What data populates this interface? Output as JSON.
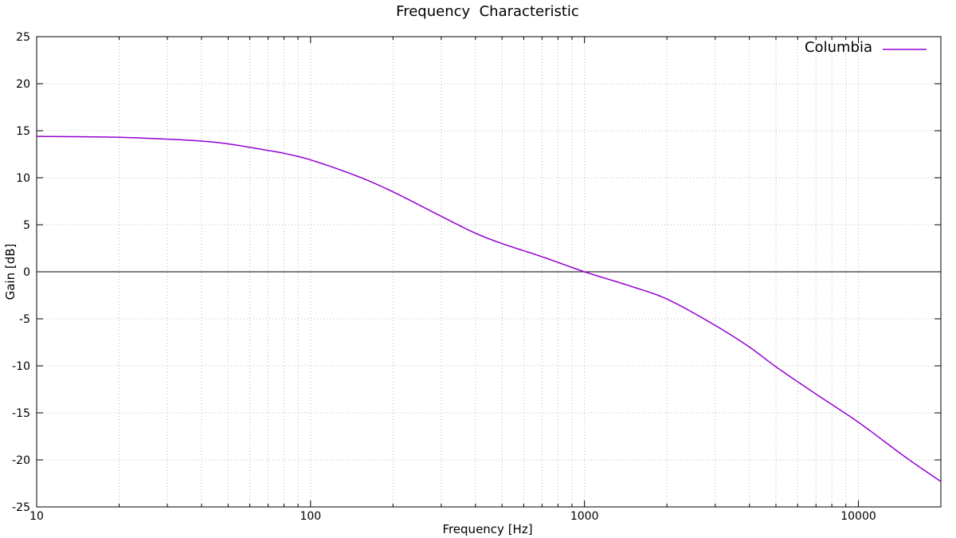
{
  "chart_data": {
    "type": "line",
    "title": "Frequency  Characteristic",
    "xlabel": "Frequency [Hz]",
    "ylabel": "Gain [dB]",
    "xscale": "log",
    "xlim": [
      10,
      20000
    ],
    "ylim": [
      -25,
      25
    ],
    "x_tick_labels": [
      "10",
      "100",
      "1000",
      "10000"
    ],
    "y_tick_labels": [
      "25",
      "20",
      "15",
      "10",
      "5",
      "0",
      "-5",
      "-10",
      "-15",
      "-20",
      "-25"
    ],
    "grid": true,
    "legend_position": "top-right",
    "series": [
      {
        "name": "Columbia",
        "color": "#9400d3",
        "x": [
          10,
          20,
          30,
          40,
          50,
          70,
          80,
          100,
          150,
          200,
          300,
          400,
          500,
          700,
          1000,
          1500,
          2000,
          3000,
          4000,
          5000,
          7000,
          10000,
          15000,
          20000
        ],
        "y": [
          14.4,
          14.3,
          14.1,
          13.9,
          13.6,
          12.9,
          12.6,
          11.9,
          10.1,
          8.5,
          5.9,
          4.1,
          3.0,
          1.6,
          0.0,
          -1.6,
          -2.9,
          -5.7,
          -8.0,
          -10.1,
          -13.0,
          -16.0,
          -19.8,
          -22.3
        ]
      }
    ]
  }
}
